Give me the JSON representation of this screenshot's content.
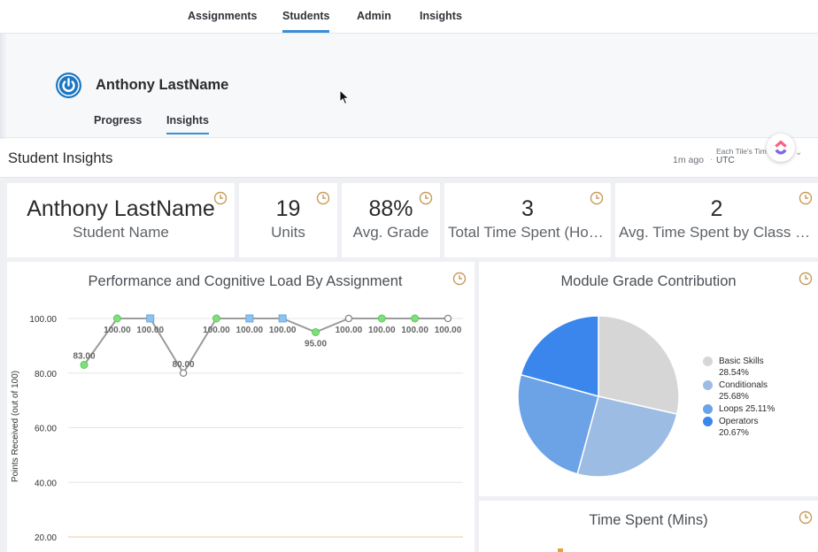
{
  "nav": {
    "tabs": [
      "Assignments",
      "Students",
      "Admin",
      "Insights"
    ],
    "active": "Students"
  },
  "student": {
    "name": "Anthony LastName"
  },
  "subtabs": [
    "Progress",
    "Insights"
  ],
  "insights": {
    "title": "Student Insights",
    "updated": "1m ago",
    "separator": "·",
    "timezone_label": "Each Tile's Tim",
    "timezone_value": "UTC",
    "chevron": "⌄"
  },
  "kpis": [
    {
      "value": "Anthony LastName",
      "label": "Student Name"
    },
    {
      "value": "19",
      "label": "Units"
    },
    {
      "value": "88%",
      "label": "Avg. Grade"
    },
    {
      "value": "3",
      "label": "Total Time Spent (Hours)"
    },
    {
      "value": "2",
      "label": "Avg. Time Spent by Class (Hours)"
    }
  ],
  "colors": {
    "accent": "#3a8ed6",
    "clock": "#c89b5a",
    "green": "#7ee07a",
    "blue_square": "#8ec3f0",
    "line": "#9b9b9b"
  },
  "chart_data": [
    {
      "type": "line",
      "title": "Performance and Cognitive Load By Assignment",
      "ylabel": "Points Received (out of 100)",
      "ylim": [
        20,
        100
      ],
      "yticks": [
        "100.00",
        "80.00",
        "60.00",
        "40.00",
        "20.00"
      ],
      "grid": true,
      "series": [
        {
          "name": "Points Received",
          "values": [
            83,
            100,
            100,
            80,
            100,
            100,
            100,
            95,
            100,
            100,
            100,
            100
          ],
          "labels": [
            "83.00",
            "100.00",
            "100.00",
            "80.00",
            "100.00",
            "100.00",
            "100.00",
            "95.00",
            "100.00",
            "100.00",
            "100.00",
            "100.00"
          ],
          "markers": [
            "green",
            "green",
            "square",
            "hollow",
            "green",
            "square",
            "square",
            "green",
            "hollow",
            "green",
            "green",
            "hollow"
          ]
        }
      ]
    },
    {
      "type": "pie",
      "title": "Module Grade Contribution",
      "slices": [
        {
          "name": "Basic Skills",
          "value": 28.54,
          "label": "28.54%",
          "color": "#d6d6d6"
        },
        {
          "name": "Conditionals",
          "value": 25.68,
          "label": "25.68%",
          "color": "#9dbce3"
        },
        {
          "name": "Loops",
          "value": 25.11,
          "label": "25.11%",
          "color": "#6ba3e6"
        },
        {
          "name": "Operators",
          "value": 20.67,
          "label": "20.67%",
          "color": "#3a86ec"
        }
      ]
    },
    {
      "type": "bar",
      "title": "Time Spent (Mins)"
    }
  ]
}
